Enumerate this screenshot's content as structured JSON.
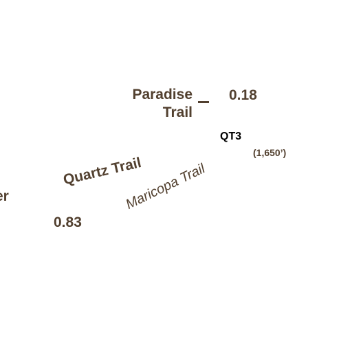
{
  "map": {
    "trail_labels": {
      "paradise_line1": "Paradise",
      "paradise_line2": "Trail",
      "quartz": "Quartz Trail",
      "maricopa": "Maricopa Trail",
      "partial_left": "er"
    },
    "distances": {
      "upper": "0.18",
      "lower": "0.83"
    },
    "waypoint": {
      "id": "QT3",
      "elevation": "(1,650’)"
    },
    "colors": {
      "label": "#52402f",
      "waypoint": "#000000",
      "background": "#ffffff"
    }
  }
}
